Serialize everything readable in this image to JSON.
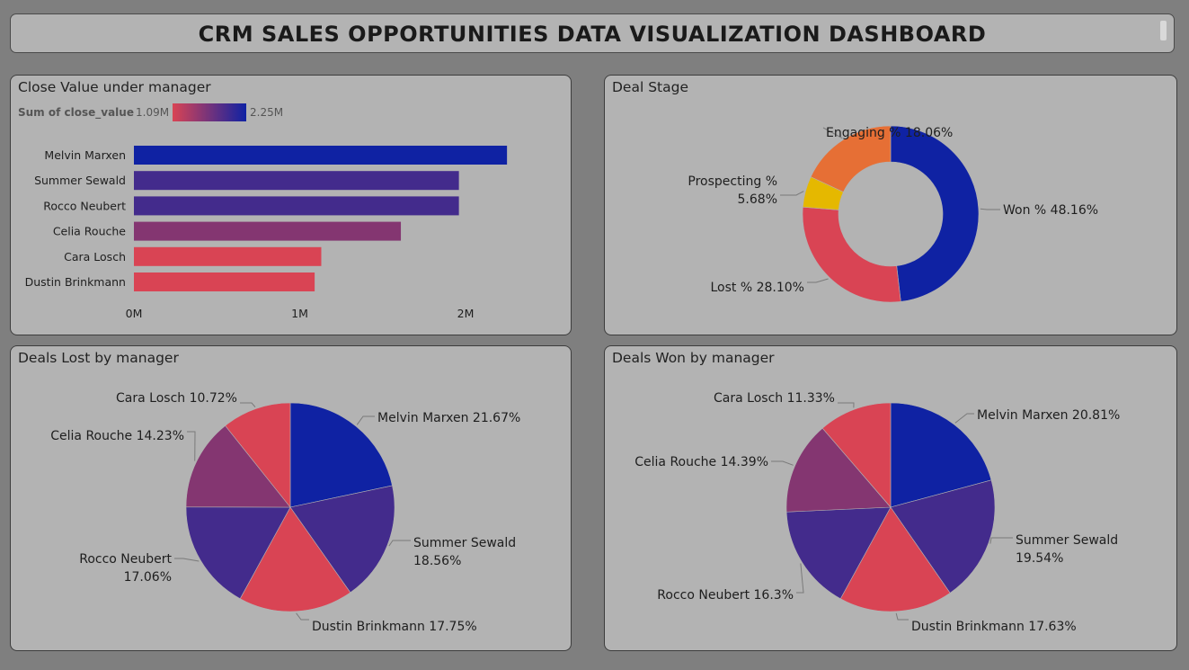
{
  "header": {
    "title": "CRM SALES OPPORTUNITIES DATA VISUALIZATION DASHBOARD"
  },
  "colors": {
    "navy": "#0f22a3",
    "indigo": "#432b8c",
    "plum": "#843671",
    "coral": "#d94454",
    "orange": "#e66f35",
    "gold": "#e5b800",
    "panel": "#b3b3b3",
    "background": "#7f7f7f"
  },
  "chart_data": [
    {
      "id": "close-value",
      "type": "bar",
      "title": "Close Value under manager",
      "legend": {
        "label": "Sum of close_value",
        "min_label": "1.09M",
        "max_label": "2.25M"
      },
      "categories": [
        "Melvin Marxen",
        "Summer Sewald",
        "Rocco Neubert",
        "Celia Rouche",
        "Cara Losch",
        "Dustin Brinkmann"
      ],
      "values": [
        2250000,
        1960000,
        1960000,
        1610000,
        1130000,
        1090000
      ],
      "colors": [
        "#0f22a3",
        "#432b8c",
        "#432b8c",
        "#843671",
        "#d94454",
        "#d94454"
      ],
      "xlim": [
        0,
        2000000
      ],
      "xticks": [
        0,
        1000000,
        2000000
      ],
      "xtick_labels": [
        "0M",
        "1M",
        "2M"
      ]
    },
    {
      "id": "deal-stage",
      "type": "pie",
      "donut": true,
      "title": "Deal Stage",
      "slices": [
        {
          "label": "Won % 48.16%",
          "value": 48.16,
          "color": "#0f22a3"
        },
        {
          "label": "Lost % 28.10%",
          "value": 28.1,
          "color": "#d94454"
        },
        {
          "label": "Prospecting %",
          "label2": "5.68%",
          "value": 5.68,
          "color": "#e5b800"
        },
        {
          "label": "Engaging % 18.06%",
          "value": 18.06,
          "color": "#e66f35"
        }
      ]
    },
    {
      "id": "deals-lost",
      "type": "pie",
      "title": "Deals Lost by manager",
      "slices": [
        {
          "label": "Melvin Marxen 21.67%",
          "value": 21.67,
          "color": "#0f22a3"
        },
        {
          "label": "Summer Sewald",
          "label2": "18.56%",
          "value": 18.56,
          "color": "#432b8c"
        },
        {
          "label": "Dustin Brinkmann 17.75%",
          "value": 17.75,
          "color": "#d94454"
        },
        {
          "label": "Rocco Neubert",
          "label2": "17.06%",
          "value": 17.06,
          "color": "#432b8c"
        },
        {
          "label": "Celia Rouche 14.23%",
          "value": 14.23,
          "color": "#843671"
        },
        {
          "label": "Cara Losch 10.72%",
          "value": 10.72,
          "color": "#d94454"
        }
      ]
    },
    {
      "id": "deals-won",
      "type": "pie",
      "title": "Deals Won by manager",
      "slices": [
        {
          "label": "Melvin Marxen 20.81%",
          "value": 20.81,
          "color": "#0f22a3"
        },
        {
          "label": "Summer Sewald",
          "label2": "19.54%",
          "value": 19.54,
          "color": "#432b8c"
        },
        {
          "label": "Dustin Brinkmann 17.63%",
          "value": 17.63,
          "color": "#d94454"
        },
        {
          "label": "Rocco Neubert 16.3%",
          "value": 16.3,
          "color": "#432b8c"
        },
        {
          "label": "Celia Rouche 14.39%",
          "value": 14.39,
          "color": "#843671"
        },
        {
          "label": "Cara Losch 11.33%",
          "value": 11.33,
          "color": "#d94454"
        }
      ]
    }
  ]
}
